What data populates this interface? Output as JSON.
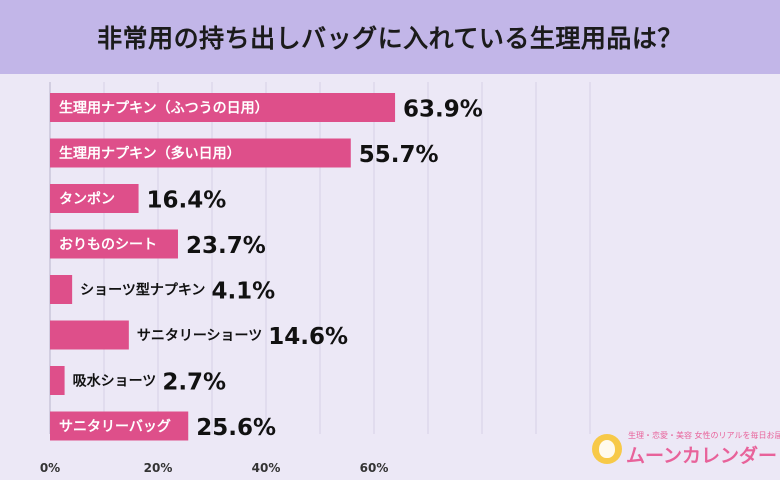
{
  "title": "非常用の持ち出しバッグに入れている生理用品は？",
  "logo": {
    "tagline": "生理・恋愛・美容 女性のリアルを毎日お届け♪",
    "brand": "ムーンカレンダー"
  },
  "colors": {
    "header_bg": "#c2b6e8",
    "bar": "#de4f8a",
    "label_text": "#ffffff",
    "value_text": "#111111"
  },
  "chart_data": {
    "type": "bar",
    "orientation": "horizontal",
    "title": "非常用の持ち出しバッグに入れている生理用品は？",
    "categories": [
      "生理用ナプキン（ふつうの日用）",
      "生理用ナプキン（多い日用）",
      "タンポン",
      "おりものシート",
      "ショーツ型ナプキン",
      "サニタリーショーツ",
      "吸水ショーツ",
      "サニタリーバッグ"
    ],
    "values": [
      63.9,
      55.7,
      16.4,
      23.7,
      4.1,
      14.6,
      2.7,
      25.6
    ],
    "value_labels": [
      "63.9%",
      "55.7%",
      "16.4%",
      "23.7%",
      "4.1%",
      "14.6%",
      "2.7%",
      "25.6%"
    ],
    "xlim": [
      0,
      100
    ],
    "x_ticks": [
      0,
      20,
      40,
      60
    ],
    "x_tick_labels": [
      "0%",
      "20%",
      "40%",
      "60%"
    ],
    "grid": true
  }
}
